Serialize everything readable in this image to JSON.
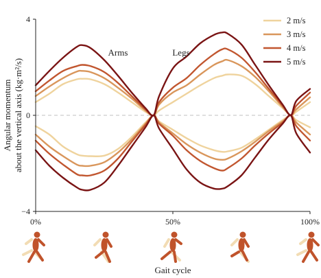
{
  "chart_data": {
    "type": "line",
    "xlabel": "Gait cycle",
    "ylabel_line1": "Angular momentum",
    "ylabel_line2": "about the vertical axis (kg·m²/s)",
    "ylim": [
      -4,
      4
    ],
    "xlim": [
      0,
      100
    ],
    "x_tick_labels": [
      "0%",
      "50%",
      "100%"
    ],
    "y_tick_labels": [
      "4",
      "0",
      "−4"
    ],
    "x_ticks": [
      0,
      50,
      100
    ],
    "y_ticks": [
      4,
      0,
      -4
    ],
    "zero_line": "dashed",
    "legend_position": "top-right",
    "annotations": [
      {
        "text": "Arms",
        "x": 30,
        "y": 2.6
      },
      {
        "text": "Legs",
        "x": 53,
        "y": 2.6
      }
    ],
    "x": [
      0,
      5,
      10,
      15,
      17,
      20,
      25,
      30,
      35,
      40,
      43,
      45,
      50,
      55,
      60,
      65,
      68,
      70,
      75,
      80,
      85,
      90,
      93,
      95,
      100
    ],
    "series": [
      {
        "name": "2 m/s",
        "color": "#efd39d",
        "upper": [
          0.55,
          0.9,
          1.3,
          1.5,
          1.52,
          1.5,
          1.3,
          0.95,
          0.55,
          0.15,
          0.0,
          0.2,
          0.55,
          0.9,
          1.25,
          1.55,
          1.65,
          1.7,
          1.65,
          1.3,
          0.8,
          0.3,
          0.0,
          0.15,
          0.55
        ],
        "lower": [
          -0.45,
          -0.8,
          -1.3,
          -1.62,
          -1.68,
          -1.7,
          -1.68,
          -1.4,
          -0.9,
          -0.3,
          0.0,
          -0.25,
          -0.6,
          -0.95,
          -1.25,
          -1.45,
          -1.52,
          -1.5,
          -1.35,
          -1.0,
          -0.6,
          -0.2,
          0.0,
          -0.2,
          -0.5
        ]
      },
      {
        "name": "3 m/s",
        "color": "#d9965b",
        "upper": [
          0.8,
          1.2,
          1.55,
          1.82,
          1.85,
          1.8,
          1.55,
          1.15,
          0.7,
          0.2,
          0.0,
          0.45,
          0.95,
          1.25,
          1.7,
          2.1,
          2.25,
          2.3,
          2.05,
          1.6,
          1.0,
          0.35,
          0.0,
          0.25,
          0.75
        ],
        "lower": [
          -0.8,
          -1.3,
          -1.7,
          -2.05,
          -2.1,
          -2.1,
          -1.95,
          -1.55,
          -1.0,
          -0.35,
          0.0,
          -0.3,
          -0.75,
          -1.2,
          -1.55,
          -1.8,
          -1.85,
          -1.8,
          -1.5,
          -1.1,
          -0.65,
          -0.25,
          0.0,
          -0.3,
          -0.8
        ]
      },
      {
        "name": "4 m/s",
        "color": "#c1562f",
        "upper": [
          1.0,
          1.45,
          1.85,
          2.05,
          2.1,
          2.05,
          1.8,
          1.35,
          0.8,
          0.25,
          0.0,
          0.55,
          1.15,
          1.55,
          2.1,
          2.55,
          2.75,
          2.75,
          2.4,
          1.8,
          1.1,
          0.4,
          0.0,
          0.4,
          0.95
        ],
        "lower": [
          -1.05,
          -1.6,
          -2.05,
          -2.45,
          -2.5,
          -2.5,
          -2.3,
          -1.8,
          -1.1,
          -0.4,
          0.0,
          -0.35,
          -0.85,
          -1.45,
          -1.9,
          -2.2,
          -2.3,
          -2.2,
          -1.8,
          -1.25,
          -0.75,
          -0.3,
          0.0,
          -0.45,
          -1.05
        ]
      },
      {
        "name": "5 m/s",
        "color": "#7a1414",
        "upper": [
          1.25,
          1.85,
          2.4,
          2.85,
          2.92,
          2.8,
          2.3,
          1.65,
          0.95,
          0.3,
          0.0,
          0.8,
          1.95,
          2.45,
          3.0,
          3.35,
          3.45,
          3.4,
          2.95,
          2.1,
          1.25,
          0.45,
          0.0,
          0.6,
          1.1
        ],
        "lower": [
          -1.45,
          -2.1,
          -2.6,
          -3.0,
          -3.1,
          -3.1,
          -2.8,
          -2.1,
          -1.3,
          -0.5,
          0.0,
          -0.55,
          -1.4,
          -2.25,
          -2.8,
          -3.05,
          -3.05,
          -2.95,
          -2.5,
          -1.75,
          -1.0,
          -0.35,
          0.0,
          -0.75,
          -1.55
        ]
      }
    ]
  },
  "runner_icons": [
    {
      "name": "runner-icon-0",
      "at": 0
    },
    {
      "name": "runner-icon-25",
      "at": 25
    },
    {
      "name": "runner-icon-50",
      "at": 50
    },
    {
      "name": "runner-icon-75",
      "at": 75
    },
    {
      "name": "runner-icon-100",
      "at": 100
    }
  ],
  "colors": {
    "runner_front": "#c0532b",
    "runner_back": "#f2dcb4",
    "zero_line": "#bfbfbf",
    "axis": "#222222"
  }
}
